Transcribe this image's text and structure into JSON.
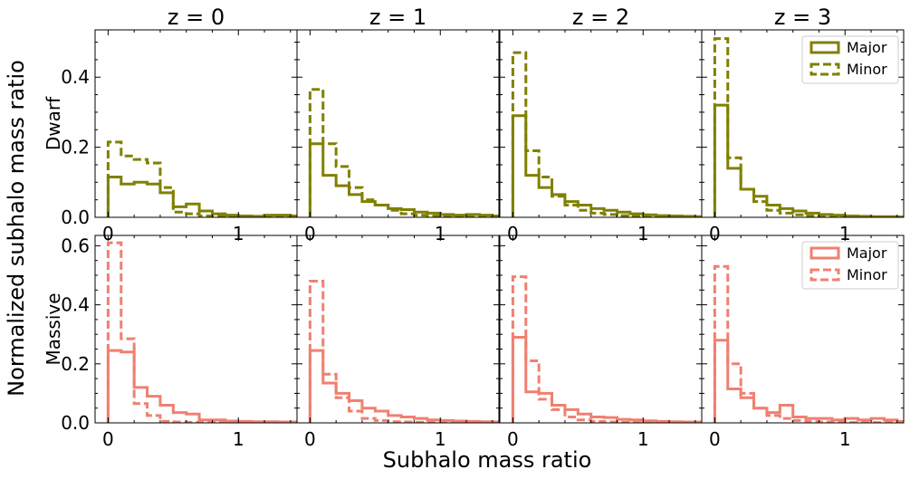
{
  "figure": {
    "xlabel": "Subhalo mass ratio",
    "ylabel": "Normalized subhalo mass ratio",
    "col_titles": [
      "z = 0",
      "z = 1",
      "z = 2",
      "z = 3"
    ],
    "row_labels": [
      "Dwarf",
      "Massive"
    ],
    "colors": {
      "Dwarf": "#808000",
      "Massive": "#f08070"
    }
  },
  "chart_data": {
    "type": "histogram-step",
    "bin_width": 0.1,
    "xlim": [
      -0.1,
      1.45
    ],
    "xticks": [
      0,
      1
    ],
    "rows": [
      {
        "row": "Dwarf",
        "ylim": [
          0,
          0.535
        ],
        "yticks": [
          0.0,
          0.2,
          0.4
        ],
        "panels": [
          {
            "title": "z = 0",
            "series": [
              {
                "name": "Major",
                "style": "solid",
                "values": [
                  0.115,
                  0.095,
                  0.1,
                  0.095,
                  0.07,
                  0.03,
                  0.038,
                  0.018,
                  0.01,
                  0.006,
                  0.004,
                  0.003,
                  0.006,
                  0.006,
                  0.004
                ]
              },
              {
                "name": "Minor",
                "style": "dashed",
                "values": [
                  0.215,
                  0.175,
                  0.165,
                  0.155,
                  0.085,
                  0.015,
                  0.01,
                  0.004,
                  0.003,
                  0.002,
                  0.001,
                  0.001,
                  0.001,
                  0.001,
                  0.001
                ]
              }
            ]
          },
          {
            "title": "z = 1",
            "series": [
              {
                "name": "Major",
                "style": "solid",
                "values": [
                  0.21,
                  0.12,
                  0.09,
                  0.065,
                  0.045,
                  0.035,
                  0.025,
                  0.022,
                  0.015,
                  0.012,
                  0.008,
                  0.006,
                  0.008,
                  0.006,
                  0.004
                ]
              },
              {
                "name": "Minor",
                "style": "dashed",
                "values": [
                  0.365,
                  0.21,
                  0.145,
                  0.085,
                  0.05,
                  0.035,
                  0.02,
                  0.01,
                  0.006,
                  0.004,
                  0.002,
                  0.002,
                  0.001,
                  0.001,
                  0.001
                ]
              }
            ]
          },
          {
            "title": "z = 2",
            "series": [
              {
                "name": "Major",
                "style": "solid",
                "values": [
                  0.29,
                  0.12,
                  0.085,
                  0.065,
                  0.045,
                  0.035,
                  0.025,
                  0.02,
                  0.015,
                  0.01,
                  0.007,
                  0.005,
                  0.004,
                  0.003,
                  0.002
                ]
              },
              {
                "name": "Minor",
                "style": "dashed",
                "values": [
                  0.47,
                  0.19,
                  0.115,
                  0.06,
                  0.035,
                  0.02,
                  0.012,
                  0.008,
                  0.005,
                  0.003,
                  0.002,
                  0.001,
                  0.001,
                  0.001,
                  0.001
                ]
              }
            ]
          },
          {
            "title": "z = 3",
            "series": [
              {
                "name": "Major",
                "style": "solid",
                "values": [
                  0.32,
                  0.14,
                  0.08,
                  0.06,
                  0.035,
                  0.025,
                  0.018,
                  0.012,
                  0.008,
                  0.006,
                  0.004,
                  0.003,
                  0.002,
                  0.002,
                  0.001
                ]
              },
              {
                "name": "Minor",
                "style": "dashed",
                "values": [
                  0.51,
                  0.17,
                  0.08,
                  0.045,
                  0.02,
                  0.012,
                  0.007,
                  0.004,
                  0.003,
                  0.002,
                  0.001,
                  0.001,
                  0.001,
                  0.001,
                  0.001
                ]
              }
            ]
          }
        ]
      },
      {
        "row": "Massive",
        "ylim": [
          0,
          0.635
        ],
        "yticks": [
          0.0,
          0.2,
          0.4,
          0.6
        ],
        "panels": [
          {
            "title": "z = 0",
            "series": [
              {
                "name": "Major",
                "style": "solid",
                "values": [
                  0.245,
                  0.24,
                  0.12,
                  0.09,
                  0.06,
                  0.035,
                  0.03,
                  0.01,
                  0.01,
                  0.006,
                  0.005,
                  0.004,
                  0.004,
                  0.003,
                  0.003
                ]
              },
              {
                "name": "Minor",
                "style": "dashed",
                "values": [
                  0.61,
                  0.285,
                  0.065,
                  0.025,
                  0.005,
                  0.003,
                  0.002,
                  0.001,
                  0.001,
                  0.001,
                  0.001,
                  0.001,
                  0.001,
                  0.001,
                  0.001
                ]
              }
            ]
          },
          {
            "title": "z = 1",
            "series": [
              {
                "name": "Major",
                "style": "solid",
                "values": [
                  0.245,
                  0.135,
                  0.1,
                  0.075,
                  0.05,
                  0.04,
                  0.025,
                  0.02,
                  0.015,
                  0.01,
                  0.008,
                  0.006,
                  0.005,
                  0.004,
                  0.003
                ]
              },
              {
                "name": "Minor",
                "style": "dashed",
                "values": [
                  0.48,
                  0.165,
                  0.085,
                  0.04,
                  0.015,
                  0.008,
                  0.004,
                  0.003,
                  0.002,
                  0.001,
                  0.001,
                  0.001,
                  0.001,
                  0.001,
                  0.001
                ]
              }
            ]
          },
          {
            "title": "z = 2",
            "series": [
              {
                "name": "Major",
                "style": "solid",
                "values": [
                  0.29,
                  0.105,
                  0.1,
                  0.06,
                  0.045,
                  0.03,
                  0.02,
                  0.018,
                  0.012,
                  0.01,
                  0.007,
                  0.005,
                  0.004,
                  0.003,
                  0.003
                ]
              },
              {
                "name": "Minor",
                "style": "dashed",
                "values": [
                  0.495,
                  0.21,
                  0.08,
                  0.045,
                  0.02,
                  0.01,
                  0.005,
                  0.003,
                  0.002,
                  0.001,
                  0.001,
                  0.001,
                  0.001,
                  0.001,
                  0.001
                ]
              }
            ]
          },
          {
            "title": "z = 3",
            "series": [
              {
                "name": "Major",
                "style": "solid",
                "values": [
                  0.28,
                  0.115,
                  0.085,
                  0.05,
                  0.035,
                  0.06,
                  0.02,
                  0.015,
                  0.015,
                  0.01,
                  0.015,
                  0.01,
                  0.015,
                  0.01,
                  0.005
                ]
              },
              {
                "name": "Minor",
                "style": "dashed",
                "values": [
                  0.53,
                  0.2,
                  0.1,
                  0.05,
                  0.025,
                  0.015,
                  0.008,
                  0.005,
                  0.003,
                  0.002,
                  0.001,
                  0.001,
                  0.001,
                  0.001,
                  0.001
                ]
              }
            ]
          }
        ]
      }
    ],
    "legend": {
      "entries": [
        "Major",
        "Minor"
      ],
      "position": "upper-right",
      "panel": "z = 3"
    }
  }
}
